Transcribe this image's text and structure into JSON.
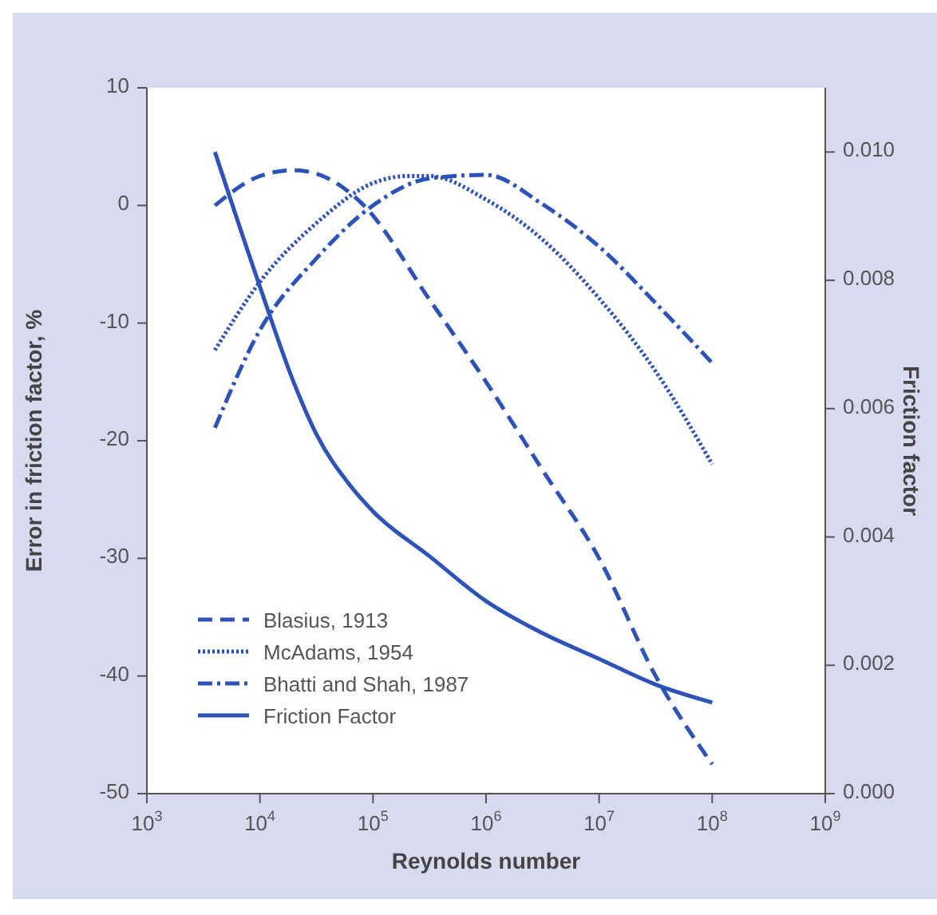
{
  "chart_data": {
    "type": "line",
    "xlabel": "Reynolds number",
    "ylabel": "Error in friction factor, %",
    "y2label": "Friction factor",
    "log": "x",
    "xlim": [
      1000,
      1000000000
    ],
    "xticks": [
      {
        "value": 1000,
        "label": "10$^{3}$"
      },
      {
        "value": 10000,
        "label": "10$^{4}$"
      },
      {
        "value": 100000,
        "label": "10$^{5}$"
      },
      {
        "value": 1000000,
        "label": "10$^{6}$"
      },
      {
        "value": 10000000,
        "label": "10$^{7}$"
      },
      {
        "value": 100000000,
        "label": "10$^{8}$"
      },
      {
        "value": 1000000000,
        "label": "10$^{9}$"
      }
    ],
    "ylim": [
      -50,
      10
    ],
    "yticks": [
      -50,
      -40,
      -30,
      -20,
      -10,
      0,
      10
    ],
    "y2lim": [
      0,
      0.011
    ],
    "y2ticks": [
      {
        "value": 0,
        "label": "0.000"
      },
      {
        "value": 0.002,
        "label": "0.002"
      },
      {
        "value": 0.004,
        "label": "0.004"
      },
      {
        "value": 0.006,
        "label": "0.006"
      },
      {
        "value": 0.008,
        "label": "0.008"
      },
      {
        "value": 0.01,
        "label": "0.010"
      }
    ],
    "legend": "bottom left",
    "grid": false,
    "marker": "none",
    "series": [
      {
        "name": "Blasius, 1913",
        "color": "#2d52b8",
        "line_style": "dashed",
        "x": [
          4000,
          10000,
          20000,
          40000,
          83000,
          316000,
          1000000,
          3160000,
          10000000,
          31600000,
          100000000
        ],
        "values": [
          0,
          2.5,
          3,
          2.3,
          0,
          -8,
          -15,
          -22.5,
          -30,
          -40,
          -47.5
        ]
      },
      {
        "name": "McAdams, 1954",
        "color": "#2d52b8",
        "line_style": "dotted",
        "x": [
          4000,
          10000,
          31600,
          100000,
          200000,
          316000,
          1000000,
          3160000,
          10000000,
          31600000,
          100000000
        ],
        "values": [
          -12.3,
          -6.5,
          -1.5,
          1.9,
          2.5,
          2.5,
          0.5,
          -2.9,
          -7.9,
          -14.1,
          -22
        ]
      },
      {
        "name": "Bhatti and Shah, 1987",
        "color": "#2d52b8",
        "line_style": "dashdot",
        "x": [
          4000,
          10000,
          31600,
          100000,
          316000,
          1000000,
          3160000,
          10000000,
          31600000,
          100000000
        ],
        "values": [
          -18.9,
          -10.6,
          -4.5,
          0,
          2.3,
          2.6,
          0.1,
          -3.5,
          -8.3,
          -13.4
        ]
      },
      {
        "name": "Friction Factor",
        "color": "#2d52b8",
        "line_style": "solid",
        "axis": "y2",
        "x": [
          4000,
          10000,
          20000,
          31600,
          63000,
          100000,
          316000,
          1000000,
          3160000,
          10000000,
          31600000,
          100000000
        ],
        "values": [
          0.01,
          0.0079,
          0.0064,
          0.0056,
          0.0048,
          0.0044,
          0.0037,
          0.003,
          0.0025,
          0.0021,
          0.0017,
          0.00142
        ]
      }
    ]
  }
}
